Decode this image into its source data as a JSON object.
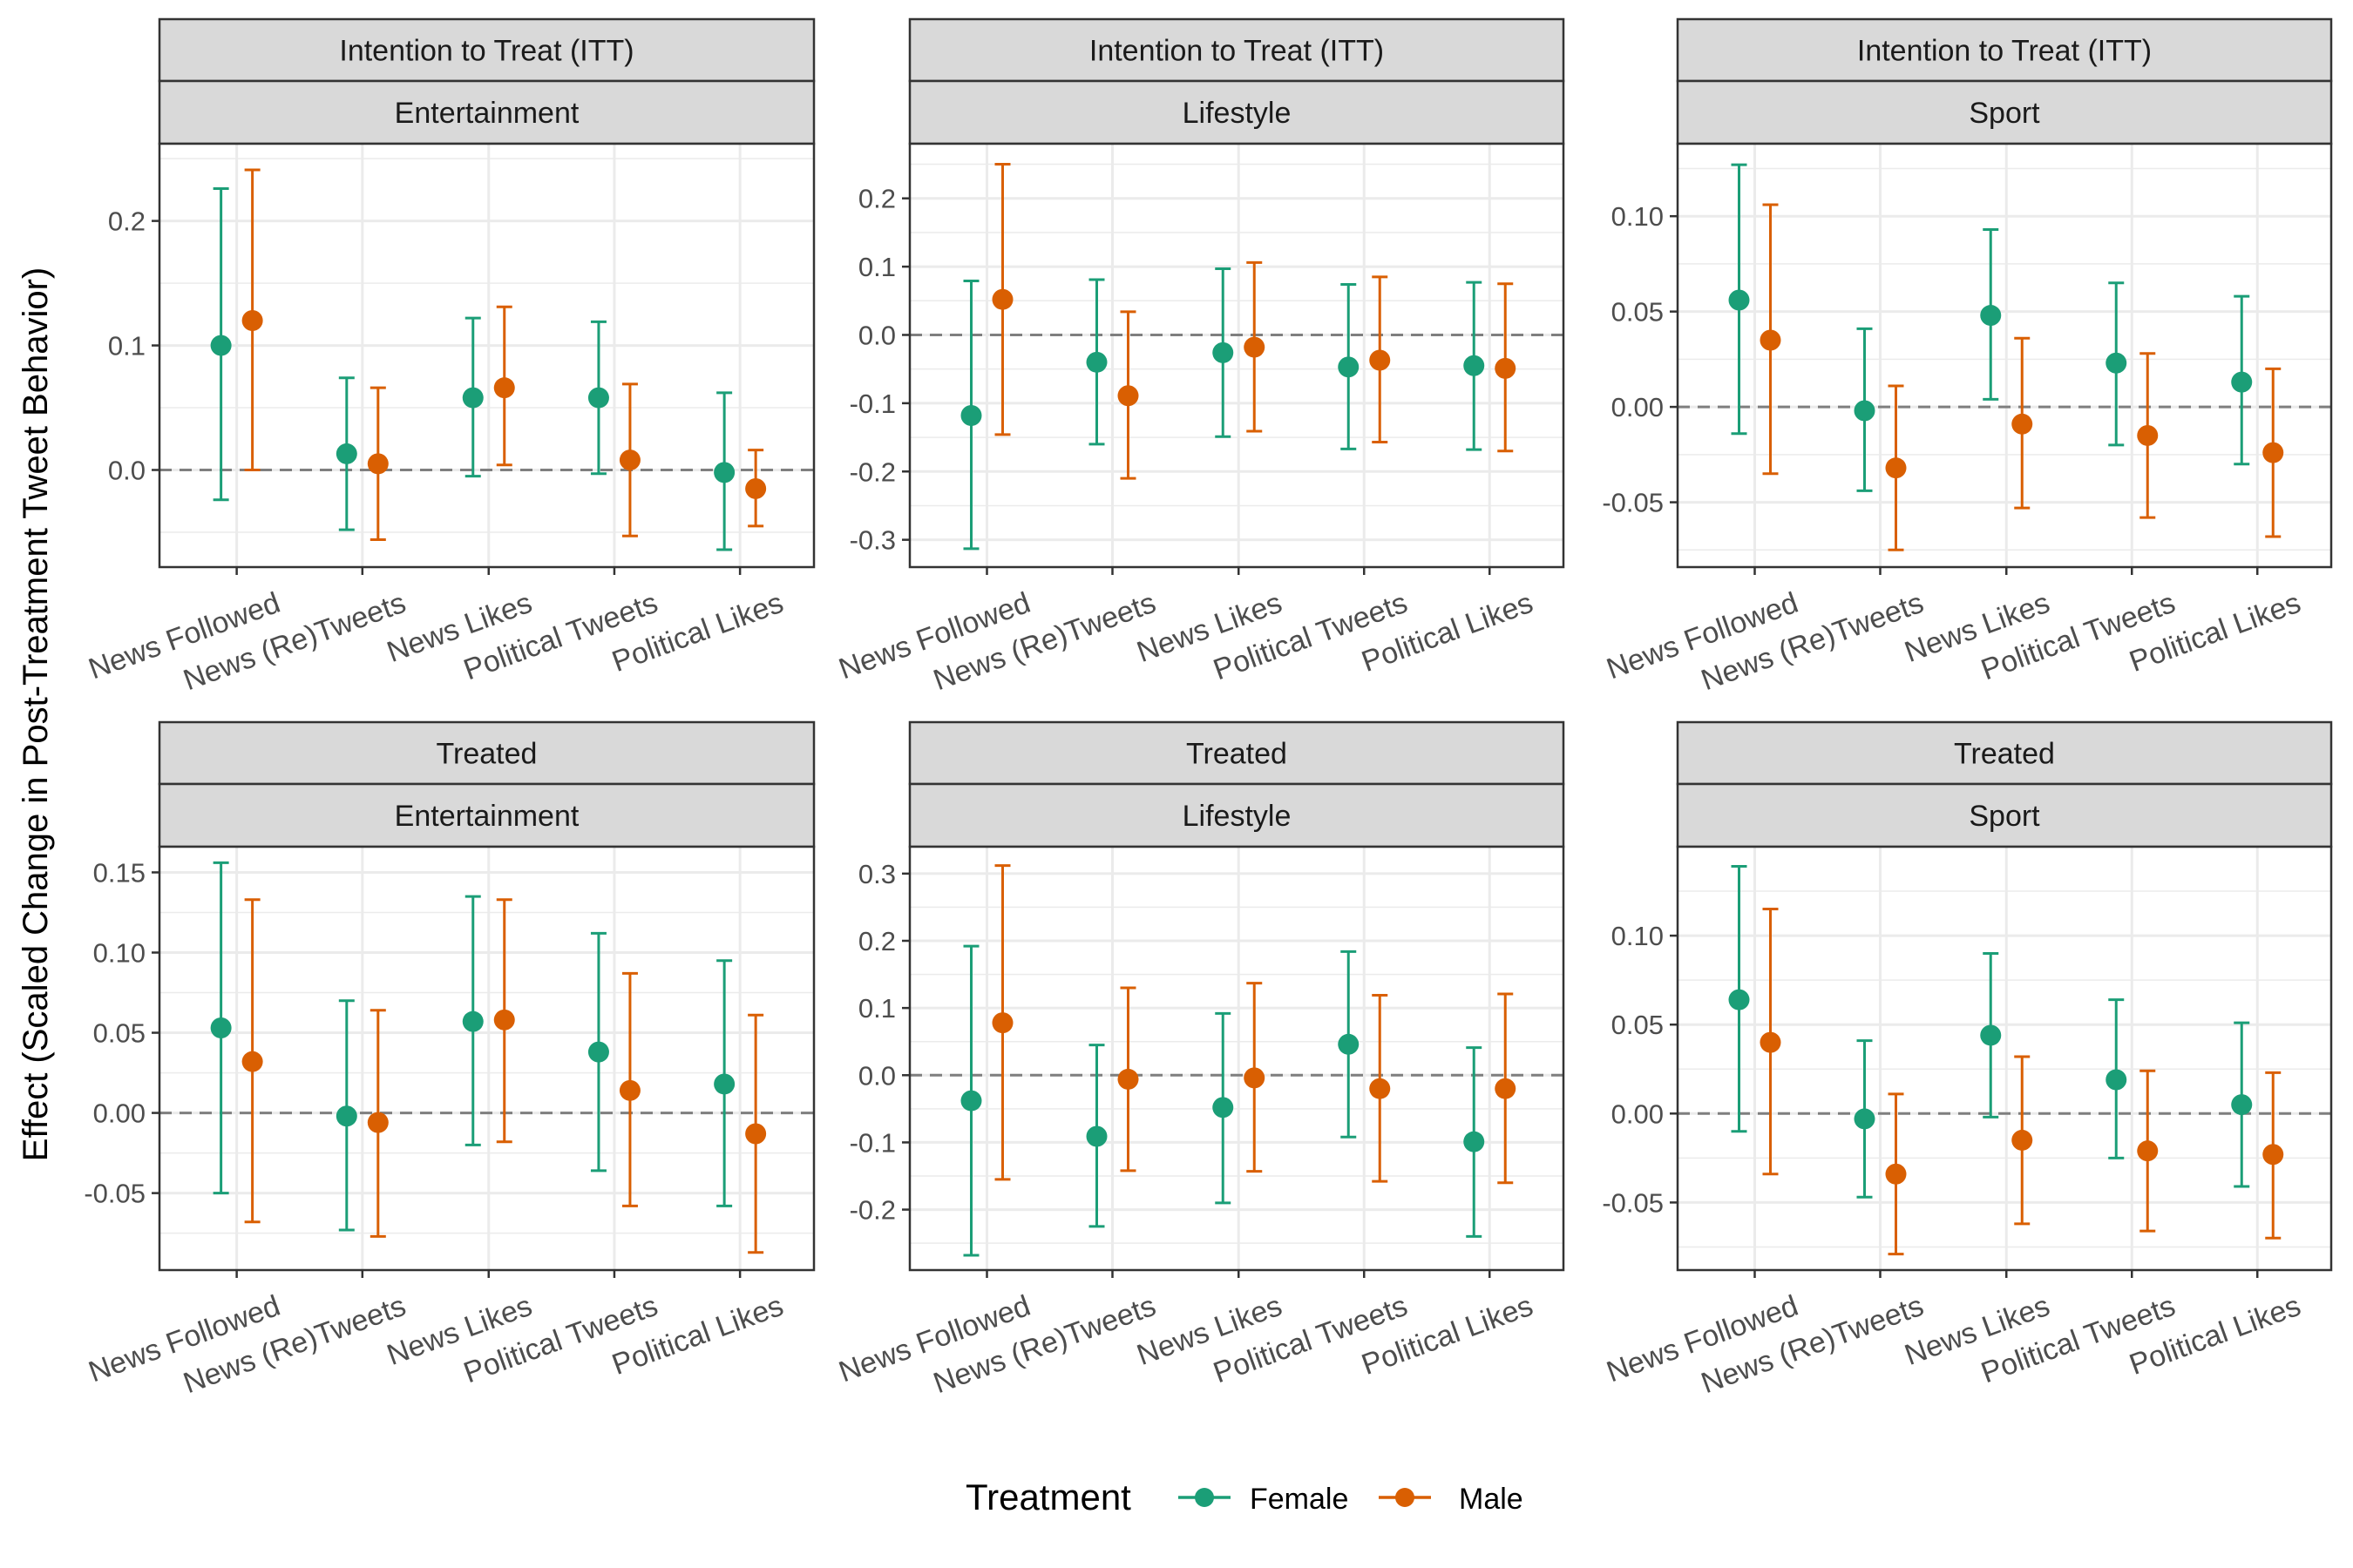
{
  "y_axis_title": "Effect (Scaled Change in Post-Treatment Tweet Behavior)",
  "legend": {
    "title": "Treatment",
    "entries": [
      {
        "label": "Female",
        "color": "#1B9E77"
      },
      {
        "label": "Male",
        "color": "#D95F02"
      }
    ]
  },
  "chart_data": [
    {
      "type": "scatter",
      "strip_top": "Intention to Treat (ITT)",
      "strip_bottom": "Entertainment",
      "categories": [
        "News Followed",
        "News (Re)Tweets",
        "News Likes",
        "Political Tweets",
        "Political Likes"
      ],
      "ylim": [
        -0.078,
        0.262
      ],
      "yticks": [
        0.0,
        0.1,
        0.2
      ],
      "ytick_labels": [
        "0.0",
        "0.1",
        "0.2"
      ],
      "series": [
        {
          "name": "Female",
          "color": "#1B9E77",
          "values": [
            0.1,
            0.013,
            0.058,
            0.058,
            -0.002
          ],
          "lower": [
            -0.024,
            -0.048,
            -0.005,
            -0.003,
            -0.064
          ],
          "upper": [
            0.226,
            0.074,
            0.122,
            0.119,
            0.062
          ]
        },
        {
          "name": "Male",
          "color": "#D95F02",
          "values": [
            0.12,
            0.005,
            0.066,
            0.008,
            -0.015
          ],
          "lower": [
            0.0,
            -0.056,
            0.004,
            -0.053,
            -0.045
          ],
          "upper": [
            0.241,
            0.066,
            0.131,
            0.069,
            0.016
          ]
        }
      ]
    },
    {
      "type": "scatter",
      "strip_top": "Intention to Treat (ITT)",
      "strip_bottom": "Lifestyle",
      "categories": [
        "News Followed",
        "News (Re)Tweets",
        "News Likes",
        "Political Tweets",
        "Political Likes"
      ],
      "ylim": [
        -0.34,
        0.28
      ],
      "yticks": [
        -0.3,
        -0.2,
        -0.1,
        0.0,
        0.1,
        0.2
      ],
      "ytick_labels": [
        "-0.3",
        "-0.2",
        "-0.1",
        "0.0",
        "0.1",
        "0.2"
      ],
      "series": [
        {
          "name": "Female",
          "color": "#1B9E77",
          "values": [
            -0.118,
            -0.04,
            -0.026,
            -0.047,
            -0.045
          ],
          "lower": [
            -0.313,
            -0.16,
            -0.149,
            -0.167,
            -0.168
          ],
          "upper": [
            0.079,
            0.081,
            0.097,
            0.074,
            0.077
          ]
        },
        {
          "name": "Male",
          "color": "#D95F02",
          "values": [
            0.052,
            -0.089,
            -0.018,
            -0.037,
            -0.049
          ],
          "lower": [
            -0.146,
            -0.21,
            -0.141,
            -0.157,
            -0.17
          ],
          "upper": [
            0.25,
            0.034,
            0.106,
            0.085,
            0.075
          ]
        }
      ]
    },
    {
      "type": "scatter",
      "strip_top": "Intention to Treat (ITT)",
      "strip_bottom": "Sport",
      "categories": [
        "News Followed",
        "News (Re)Tweets",
        "News Likes",
        "Political Tweets",
        "Political Likes"
      ],
      "ylim": [
        -0.084,
        0.138
      ],
      "yticks": [
        -0.05,
        0.0,
        0.05,
        0.1
      ],
      "ytick_labels": [
        "-0.05",
        "0.00",
        "0.05",
        "0.10"
      ],
      "series": [
        {
          "name": "Female",
          "color": "#1B9E77",
          "values": [
            0.056,
            -0.002,
            0.048,
            0.023,
            0.013
          ],
          "lower": [
            -0.014,
            -0.044,
            0.004,
            -0.02,
            -0.03
          ],
          "upper": [
            0.127,
            0.041,
            0.093,
            0.065,
            0.058
          ]
        },
        {
          "name": "Male",
          "color": "#D95F02",
          "values": [
            0.035,
            -0.032,
            -0.009,
            -0.015,
            -0.024
          ],
          "lower": [
            -0.035,
            -0.075,
            -0.053,
            -0.058,
            -0.068
          ],
          "upper": [
            0.106,
            0.011,
            0.036,
            0.028,
            0.02
          ]
        }
      ]
    },
    {
      "type": "scatter",
      "strip_top": "Treated",
      "strip_bottom": "Entertainment",
      "categories": [
        "News Followed",
        "News (Re)Tweets",
        "News Likes",
        "Political Tweets",
        "Political Likes"
      ],
      "ylim": [
        -0.098,
        0.166
      ],
      "yticks": [
        -0.05,
        0.0,
        0.05,
        0.1,
        0.15
      ],
      "ytick_labels": [
        "-0.05",
        "0.00",
        "0.05",
        "0.10",
        "0.15"
      ],
      "series": [
        {
          "name": "Female",
          "color": "#1B9E77",
          "values": [
            0.053,
            -0.002,
            0.057,
            0.038,
            0.018
          ],
          "lower": [
            -0.05,
            -0.073,
            -0.02,
            -0.036,
            -0.058
          ],
          "upper": [
            0.156,
            0.07,
            0.135,
            0.112,
            0.095
          ]
        },
        {
          "name": "Male",
          "color": "#D95F02",
          "values": [
            0.032,
            -0.006,
            0.058,
            0.014,
            -0.013
          ],
          "lower": [
            -0.068,
            -0.077,
            -0.018,
            -0.058,
            -0.087
          ],
          "upper": [
            0.133,
            0.064,
            0.133,
            0.087,
            0.061
          ]
        }
      ]
    },
    {
      "type": "scatter",
      "strip_top": "Treated",
      "strip_bottom": "Lifestyle",
      "categories": [
        "News Followed",
        "News (Re)Tweets",
        "News Likes",
        "Political Tweets",
        "Political Likes"
      ],
      "ylim": [
        -0.29,
        0.34
      ],
      "yticks": [
        -0.2,
        -0.1,
        0.0,
        0.1,
        0.2,
        0.3
      ],
      "ytick_labels": [
        "-0.2",
        "-0.1",
        "0.0",
        "0.1",
        "0.2",
        "0.3"
      ],
      "series": [
        {
          "name": "Female",
          "color": "#1B9E77",
          "values": [
            -0.038,
            -0.091,
            -0.048,
            0.046,
            -0.099
          ],
          "lower": [
            -0.268,
            -0.225,
            -0.19,
            -0.092,
            -0.24
          ],
          "upper": [
            0.192,
            0.045,
            0.092,
            0.184,
            0.041
          ]
        },
        {
          "name": "Male",
          "color": "#D95F02",
          "values": [
            0.078,
            -0.006,
            -0.004,
            -0.02,
            -0.02
          ],
          "lower": [
            -0.155,
            -0.142,
            -0.143,
            -0.158,
            -0.16
          ],
          "upper": [
            0.312,
            0.13,
            0.137,
            0.119,
            0.121
          ]
        }
      ]
    },
    {
      "type": "scatter",
      "strip_top": "Treated",
      "strip_bottom": "Sport",
      "categories": [
        "News Followed",
        "News (Re)Tweets",
        "News Likes",
        "Political Tweets",
        "Political Likes"
      ],
      "ylim": [
        -0.088,
        0.15
      ],
      "yticks": [
        -0.05,
        0.0,
        0.05,
        0.1
      ],
      "ytick_labels": [
        "-0.05",
        "0.00",
        "0.05",
        "0.10"
      ],
      "series": [
        {
          "name": "Female",
          "color": "#1B9E77",
          "values": [
            0.064,
            -0.003,
            0.044,
            0.019,
            0.005
          ],
          "lower": [
            -0.01,
            -0.047,
            -0.002,
            -0.025,
            -0.041
          ],
          "upper": [
            0.139,
            0.041,
            0.09,
            0.064,
            0.051
          ]
        },
        {
          "name": "Male",
          "color": "#D95F02",
          "values": [
            0.04,
            -0.034,
            -0.015,
            -0.021,
            -0.023
          ],
          "lower": [
            -0.034,
            -0.079,
            -0.062,
            -0.066,
            -0.07
          ],
          "upper": [
            0.115,
            0.011,
            0.032,
            0.024,
            0.023
          ]
        }
      ]
    }
  ]
}
